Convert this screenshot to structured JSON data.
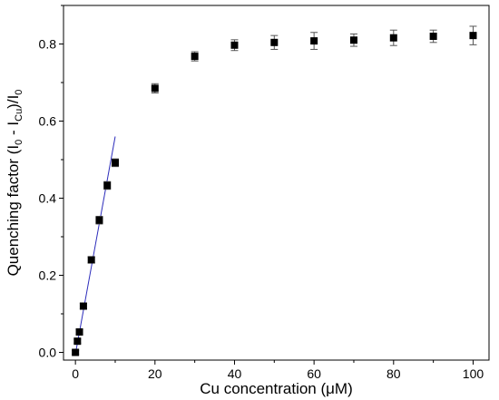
{
  "chart_data": {
    "type": "scatter",
    "xlabel": "Cu concentration (μM)",
    "ylabel": "Quenching factor (I0 - ICu)/I0",
    "ylabel_parts": {
      "prefix": "Quenching factor (I",
      "sub0": "0",
      "mid": " - I",
      "subcu": "Cu",
      "close": ")/I",
      "sub0b": "0"
    },
    "xlim": [
      -3,
      104
    ],
    "ylim": [
      -0.02,
      0.9
    ],
    "x_ticks": [
      0,
      20,
      40,
      60,
      80,
      100
    ],
    "x_tick_labels": [
      "0",
      "20",
      "40",
      "60",
      "80",
      "100"
    ],
    "y_ticks": [
      0.0,
      0.2,
      0.4,
      0.6,
      0.8
    ],
    "y_tick_labels": [
      "0.0",
      "0.2",
      "0.4",
      "0.6",
      "0.8"
    ],
    "grid": false,
    "series": [
      {
        "marker": "square",
        "color": "#000000",
        "x": [
          0,
          0.5,
          1,
          2,
          4,
          6,
          8,
          10,
          20,
          30,
          40,
          50,
          60,
          70,
          80,
          90,
          100
        ],
        "y": [
          0.0,
          0.029,
          0.053,
          0.12,
          0.24,
          0.343,
          0.433,
          0.492,
          0.685,
          0.768,
          0.797,
          0.804,
          0.808,
          0.81,
          0.816,
          0.82,
          0.822
        ],
        "error": [
          0.005,
          0.005,
          0.006,
          0.007,
          0.008,
          0.01,
          0.01,
          0.01,
          0.012,
          0.012,
          0.014,
          0.018,
          0.022,
          0.016,
          0.02,
          0.016,
          0.024
        ]
      }
    ],
    "fit_line": {
      "color": "#2d2dbb",
      "x": [
        0,
        10
      ],
      "y": [
        -0.004,
        0.56
      ]
    }
  }
}
